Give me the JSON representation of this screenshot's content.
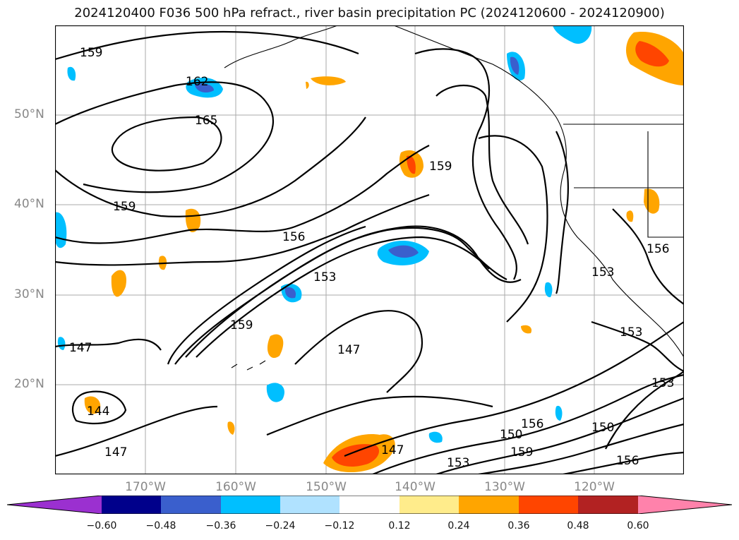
{
  "title": "2024120400 F036 500 hPa refract., river basin precipitation PC (2024120600 - 2024120900)",
  "map": {
    "lat_labels": [
      "50°N",
      "40°N",
      "30°N",
      "20°N"
    ],
    "lon_labels": [
      "170°W",
      "160°W",
      "150°W",
      "140°W",
      "130°W",
      "120°W"
    ],
    "contour_labels": [
      "159",
      "162",
      "165",
      "159",
      "156",
      "153",
      "159",
      "147",
      "147",
      "144",
      "147",
      "159",
      "156",
      "153",
      "153",
      "147",
      "150",
      "156",
      "159",
      "153",
      "150",
      "156",
      "153"
    ]
  },
  "colorbar": {
    "ticks": [
      "−0.60",
      "−0.48",
      "−0.36",
      "−0.24",
      "−0.12",
      "0.12",
      "0.24",
      "0.36",
      "0.48",
      "0.60"
    ],
    "colors": [
      "#9b30d0",
      "#00008b",
      "#3a5fcd",
      "#00bfff",
      "#b0e2ff",
      "#ffffff",
      "#ffec8b",
      "#ffa500",
      "#ff4500",
      "#b22222",
      "#ff82ab"
    ]
  },
  "chart_data": {
    "type": "heatmap",
    "title": "2024120400 F036 500 hPa refract., river basin precipitation PC (2024120600 - 2024120900)",
    "contour_levels_labeled": [
      144,
      147,
      150,
      153,
      156,
      159,
      162,
      165
    ],
    "colorbar_boundaries": [
      -0.6,
      -0.48,
      -0.36,
      -0.24,
      -0.12,
      0.12,
      0.24,
      0.36,
      0.48,
      0.6
    ],
    "lat_ticks": [
      50,
      40,
      30,
      20
    ],
    "lon_ticks": [
      -170,
      -160,
      -150,
      -140,
      -130,
      -120
    ]
  }
}
